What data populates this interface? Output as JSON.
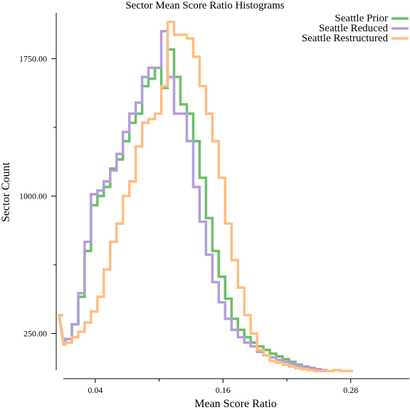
{
  "chart_data": {
    "type": "line",
    "subtype": "step-histogram",
    "title": "Sector Mean Score Ratio Histograms",
    "xlabel": "Mean Score Ratio",
    "ylabel": "Sector Count",
    "xlim": [
      0.01,
      0.335
    ],
    "ylim": [
      50,
      2000
    ],
    "x_ticks": [
      0.04,
      0.16,
      0.28
    ],
    "x_tick_labels": [
      "0.04",
      "0.16",
      "0.28"
    ],
    "x_minor_ticks": [
      0.1,
      0.22
    ],
    "y_ticks": [
      250,
      1000,
      1750
    ],
    "y_tick_labels": [
      "250.00",
      "1000.00",
      "1750.00"
    ],
    "y_minor_ticks": [
      625,
      1375
    ],
    "grid": false,
    "legend_position": "top-right",
    "bin_edges": [
      0.0,
      0.006,
      0.012,
      0.018,
      0.024,
      0.03,
      0.036,
      0.042,
      0.048,
      0.054,
      0.06,
      0.066,
      0.072,
      0.078,
      0.084,
      0.09,
      0.096,
      0.102,
      0.108,
      0.114,
      0.12,
      0.126,
      0.132,
      0.138,
      0.144,
      0.15,
      0.156,
      0.162,
      0.168,
      0.174,
      0.18,
      0.186,
      0.192,
      0.198,
      0.204,
      0.21,
      0.216,
      0.222,
      0.228,
      0.234,
      0.24,
      0.246,
      0.252,
      0.258,
      0.264,
      0.27,
      0.276,
      0.282,
      0.288,
      0.294,
      0.3,
      0.306,
      0.312,
      0.318,
      0.324,
      0.33
    ],
    "series": [
      {
        "name": "Seattle Prior",
        "color": "#6abf69",
        "values": [
          350,
          200,
          220,
          300,
          450,
          700,
          950,
          1000,
          1050,
          1150,
          1200,
          1300,
          1400,
          1450,
          1600,
          1640,
          1700,
          1590,
          1800,
          1650,
          1500,
          1450,
          1300,
          1100,
          880,
          700,
          560,
          440,
          330,
          270,
          230,
          200,
          180,
          160,
          140,
          125,
          110,
          95,
          80,
          70,
          62,
          55
        ]
      },
      {
        "name": "Seattle Reduced",
        "color": "#b39ddb",
        "values": [
          350,
          200,
          220,
          300,
          470,
          750,
          1010,
          1030,
          1080,
          1140,
          1230,
          1350,
          1450,
          1510,
          1650,
          1700,
          1700,
          1900,
          1650,
          1450,
          1450,
          1300,
          1050,
          860,
          680,
          530,
          420,
          330,
          270,
          230,
          200,
          180,
          150,
          130,
          120,
          105,
          95,
          85,
          75,
          68,
          62,
          55,
          50
        ]
      },
      {
        "name": "Seattle Restructured",
        "color": "#ffbd80",
        "values": [
          350,
          190,
          200,
          230,
          260,
          310,
          370,
          450,
          600,
          750,
          850,
          1000,
          1080,
          1270,
          1400,
          1420,
          1450,
          1600,
          1950,
          1880,
          1880,
          1860,
          1760,
          1600,
          1450,
          1300,
          1100,
          850,
          650,
          500,
          350,
          250,
          160,
          130,
          100,
          90,
          80,
          70,
          60,
          55,
          50,
          45,
          45,
          45,
          50,
          45,
          45
        ]
      }
    ]
  }
}
